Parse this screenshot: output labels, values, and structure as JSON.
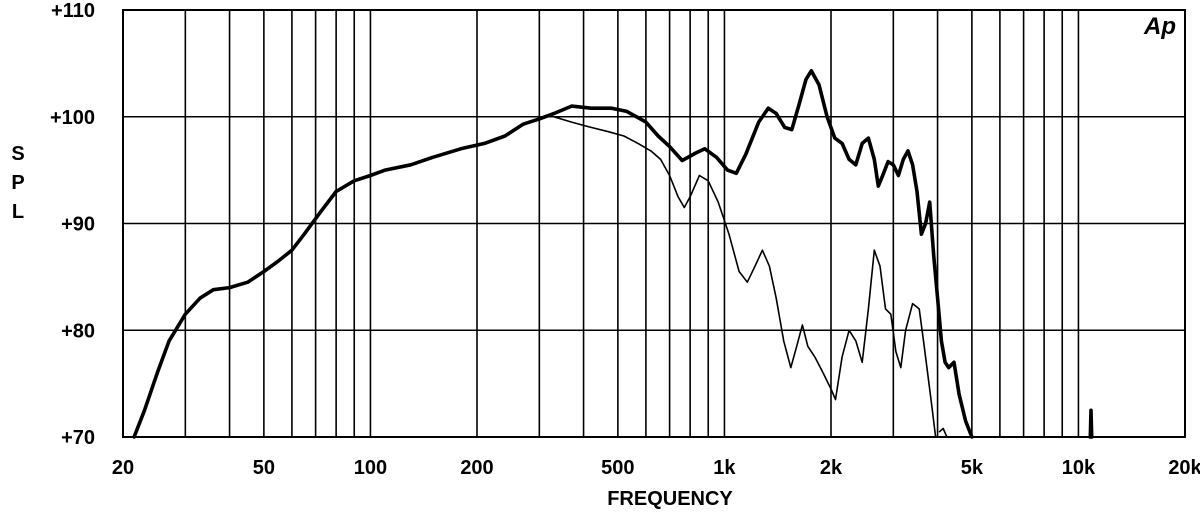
{
  "chart_data": {
    "type": "line",
    "logo": "Ap",
    "xlabel": "FREQUENCY",
    "ylabel": "SPL",
    "xscale": "log",
    "xlim": [
      20,
      20000
    ],
    "ylim": [
      70,
      110
    ],
    "grid": true,
    "x_tick_labels": [
      {
        "value": 20,
        "label": "20"
      },
      {
        "value": 50,
        "label": "50"
      },
      {
        "value": 100,
        "label": "100"
      },
      {
        "value": 200,
        "label": "200"
      },
      {
        "value": 500,
        "label": "500"
      },
      {
        "value": 1000,
        "label": "1k"
      },
      {
        "value": 2000,
        "label": "2k"
      },
      {
        "value": 5000,
        "label": "5k"
      },
      {
        "value": 10000,
        "label": "10k"
      },
      {
        "value": 20000,
        "label": "20k"
      }
    ],
    "y_tick_labels": [
      {
        "value": 70,
        "label": "+70"
      },
      {
        "value": 80,
        "label": "+80"
      },
      {
        "value": 90,
        "label": "+90"
      },
      {
        "value": 100,
        "label": "+100"
      },
      {
        "value": 110,
        "label": "+110"
      }
    ],
    "series": [
      {
        "weight": "bold",
        "points": [
          [
            21.5,
            70
          ],
          [
            23,
            72.5
          ],
          [
            25,
            76
          ],
          [
            27,
            79
          ],
          [
            30,
            81.5
          ],
          [
            33,
            83
          ],
          [
            36,
            83.8
          ],
          [
            40,
            84
          ],
          [
            45,
            84.5
          ],
          [
            50,
            85.5
          ],
          [
            55,
            86.5
          ],
          [
            60,
            87.5
          ],
          [
            65,
            89
          ],
          [
            72,
            91
          ],
          [
            80,
            93
          ],
          [
            90,
            94
          ],
          [
            100,
            94.5
          ],
          [
            110,
            95
          ],
          [
            130,
            95.5
          ],
          [
            150,
            96.2
          ],
          [
            180,
            97
          ],
          [
            210,
            97.5
          ],
          [
            240,
            98.2
          ],
          [
            270,
            99.3
          ],
          [
            300,
            99.8
          ],
          [
            330,
            100.3
          ],
          [
            370,
            101
          ],
          [
            420,
            100.8
          ],
          [
            480,
            100.8
          ],
          [
            530,
            100.5
          ],
          [
            600,
            99.5
          ],
          [
            650,
            98.2
          ],
          [
            700,
            97.2
          ],
          [
            760,
            95.9
          ],
          [
            830,
            96.6
          ],
          [
            880,
            97
          ],
          [
            950,
            96.2
          ],
          [
            1020,
            95
          ],
          [
            1080,
            94.7
          ],
          [
            1150,
            96.5
          ],
          [
            1250,
            99.5
          ],
          [
            1330,
            100.8
          ],
          [
            1400,
            100.3
          ],
          [
            1480,
            99
          ],
          [
            1550,
            98.8
          ],
          [
            1620,
            101
          ],
          [
            1700,
            103.5
          ],
          [
            1760,
            104.3
          ],
          [
            1850,
            103
          ],
          [
            1950,
            100
          ],
          [
            2050,
            98
          ],
          [
            2150,
            97.5
          ],
          [
            2250,
            96
          ],
          [
            2350,
            95.5
          ],
          [
            2450,
            97.5
          ],
          [
            2550,
            98
          ],
          [
            2650,
            96
          ],
          [
            2720,
            93.5
          ],
          [
            2800,
            94.5
          ],
          [
            2900,
            95.8
          ],
          [
            3000,
            95.5
          ],
          [
            3100,
            94.5
          ],
          [
            3200,
            96
          ],
          [
            3300,
            96.8
          ],
          [
            3400,
            95.5
          ],
          [
            3500,
            93
          ],
          [
            3600,
            89
          ],
          [
            3700,
            90
          ],
          [
            3800,
            92
          ],
          [
            3900,
            87
          ],
          [
            4000,
            83
          ],
          [
            4100,
            79
          ],
          [
            4200,
            77
          ],
          [
            4300,
            76.5
          ],
          [
            4450,
            77
          ],
          [
            4600,
            74
          ],
          [
            4800,
            71.5
          ],
          [
            5000,
            70
          ]
        ]
      },
      {
        "weight": "thin",
        "points": [
          [
            330,
            100
          ],
          [
            370,
            99.5
          ],
          [
            420,
            99
          ],
          [
            470,
            98.6
          ],
          [
            520,
            98.2
          ],
          [
            570,
            97.5
          ],
          [
            620,
            96.8
          ],
          [
            660,
            96
          ],
          [
            700,
            94.5
          ],
          [
            740,
            92.5
          ],
          [
            770,
            91.5
          ],
          [
            800,
            92.5
          ],
          [
            850,
            94.5
          ],
          [
            900,
            94
          ],
          [
            960,
            92
          ],
          [
            1030,
            89
          ],
          [
            1100,
            85.5
          ],
          [
            1160,
            84.5
          ],
          [
            1220,
            86
          ],
          [
            1280,
            87.5
          ],
          [
            1340,
            86
          ],
          [
            1400,
            83
          ],
          [
            1470,
            79
          ],
          [
            1540,
            76.5
          ],
          [
            1600,
            78.5
          ],
          [
            1660,
            80.5
          ],
          [
            1720,
            78.5
          ],
          [
            1800,
            77.5
          ],
          [
            1900,
            76
          ],
          [
            2000,
            74.5
          ],
          [
            2060,
            73.5
          ],
          [
            2150,
            77.5
          ],
          [
            2250,
            80
          ],
          [
            2350,
            79
          ],
          [
            2450,
            77
          ],
          [
            2550,
            82
          ],
          [
            2650,
            87.5
          ],
          [
            2750,
            86
          ],
          [
            2850,
            82
          ],
          [
            2950,
            81.5
          ],
          [
            3050,
            78
          ],
          [
            3150,
            76.5
          ],
          [
            3250,
            80
          ],
          [
            3400,
            82.5
          ],
          [
            3550,
            82
          ],
          [
            3650,
            79
          ],
          [
            3750,
            76
          ],
          [
            3850,
            73
          ],
          [
            3950,
            70
          ]
        ]
      },
      {
        "weight": "thin",
        "points": [
          [
            4050,
            70.5
          ],
          [
            4150,
            70.8
          ],
          [
            4250,
            70
          ]
        ]
      },
      {
        "weight": "bold",
        "points": [
          [
            10800,
            70
          ],
          [
            10850,
            72.5
          ],
          [
            10900,
            70
          ]
        ]
      }
    ]
  }
}
